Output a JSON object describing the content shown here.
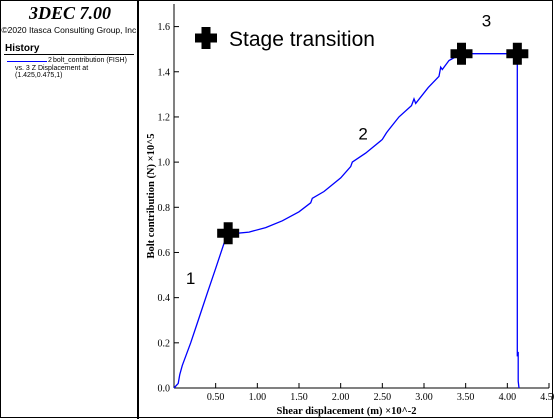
{
  "sidebar": {
    "app_title": "3DEC 7.00",
    "copyright": "©2020 Itasca Consulting Group, Inc.",
    "section_title": "History",
    "legend": {
      "series_number": "2",
      "series_name": "bolt_contribution (FISH)",
      "vs_text": "vs. 3 Z Displacement at (1.425,0.475,1)",
      "line_color": "#0000ff"
    }
  },
  "chart_data": {
    "type": "line",
    "xlabel": "Shear displacement (m) ×10^-2",
    "ylabel": "Bolt contribution (N) ×10^5",
    "xlim": [
      0,
      4.5
    ],
    "ylim": [
      0,
      1.7
    ],
    "x_ticks": [
      "0.50",
      "1.00",
      "1.50",
      "2.00",
      "2.50",
      "3.00",
      "3.50",
      "4.00",
      "4.50"
    ],
    "y_ticks": [
      "0.0",
      "0.2",
      "0.4",
      "0.6",
      "0.8",
      "1.0",
      "1.2",
      "1.4",
      "1.6"
    ],
    "series": [
      {
        "color": "#0000ff",
        "x": [
          0.0,
          0.05,
          0.07,
          0.1,
          0.2,
          0.3,
          0.4,
          0.5,
          0.6,
          0.66,
          0.75,
          0.9,
          1.1,
          1.3,
          1.5,
          1.64,
          1.66,
          1.8,
          2.0,
          2.12,
          2.14,
          2.3,
          2.5,
          2.55,
          2.57,
          2.7,
          2.85,
          2.88,
          2.9,
          3.05,
          3.18,
          3.2,
          3.22,
          3.3,
          3.45,
          3.6,
          3.8,
          4.0,
          4.1,
          4.12,
          4.12,
          4.13,
          4.13,
          4.14
        ],
        "y": [
          0.0,
          0.02,
          0.06,
          0.1,
          0.2,
          0.31,
          0.42,
          0.53,
          0.64,
          0.685,
          0.685,
          0.69,
          0.71,
          0.74,
          0.78,
          0.82,
          0.84,
          0.87,
          0.93,
          0.98,
          1.0,
          1.04,
          1.1,
          1.13,
          1.14,
          1.2,
          1.25,
          1.28,
          1.26,
          1.33,
          1.38,
          1.42,
          1.41,
          1.45,
          1.48,
          1.48,
          1.48,
          1.48,
          1.48,
          1.48,
          0.14,
          0.16,
          0.03,
          0.0
        ]
      }
    ],
    "markers": [
      {
        "x": 0.65,
        "y": 0.685
      },
      {
        "x": 3.45,
        "y": 1.48
      },
      {
        "x": 4.12,
        "y": 1.48
      }
    ],
    "legend_label": "Stage transition",
    "annotations": [
      {
        "text": "1",
        "x": 0.2,
        "y": 0.46
      },
      {
        "text": "2",
        "x": 2.27,
        "y": 1.1
      },
      {
        "text": "3",
        "x": 3.75,
        "y": 1.6
      }
    ]
  }
}
